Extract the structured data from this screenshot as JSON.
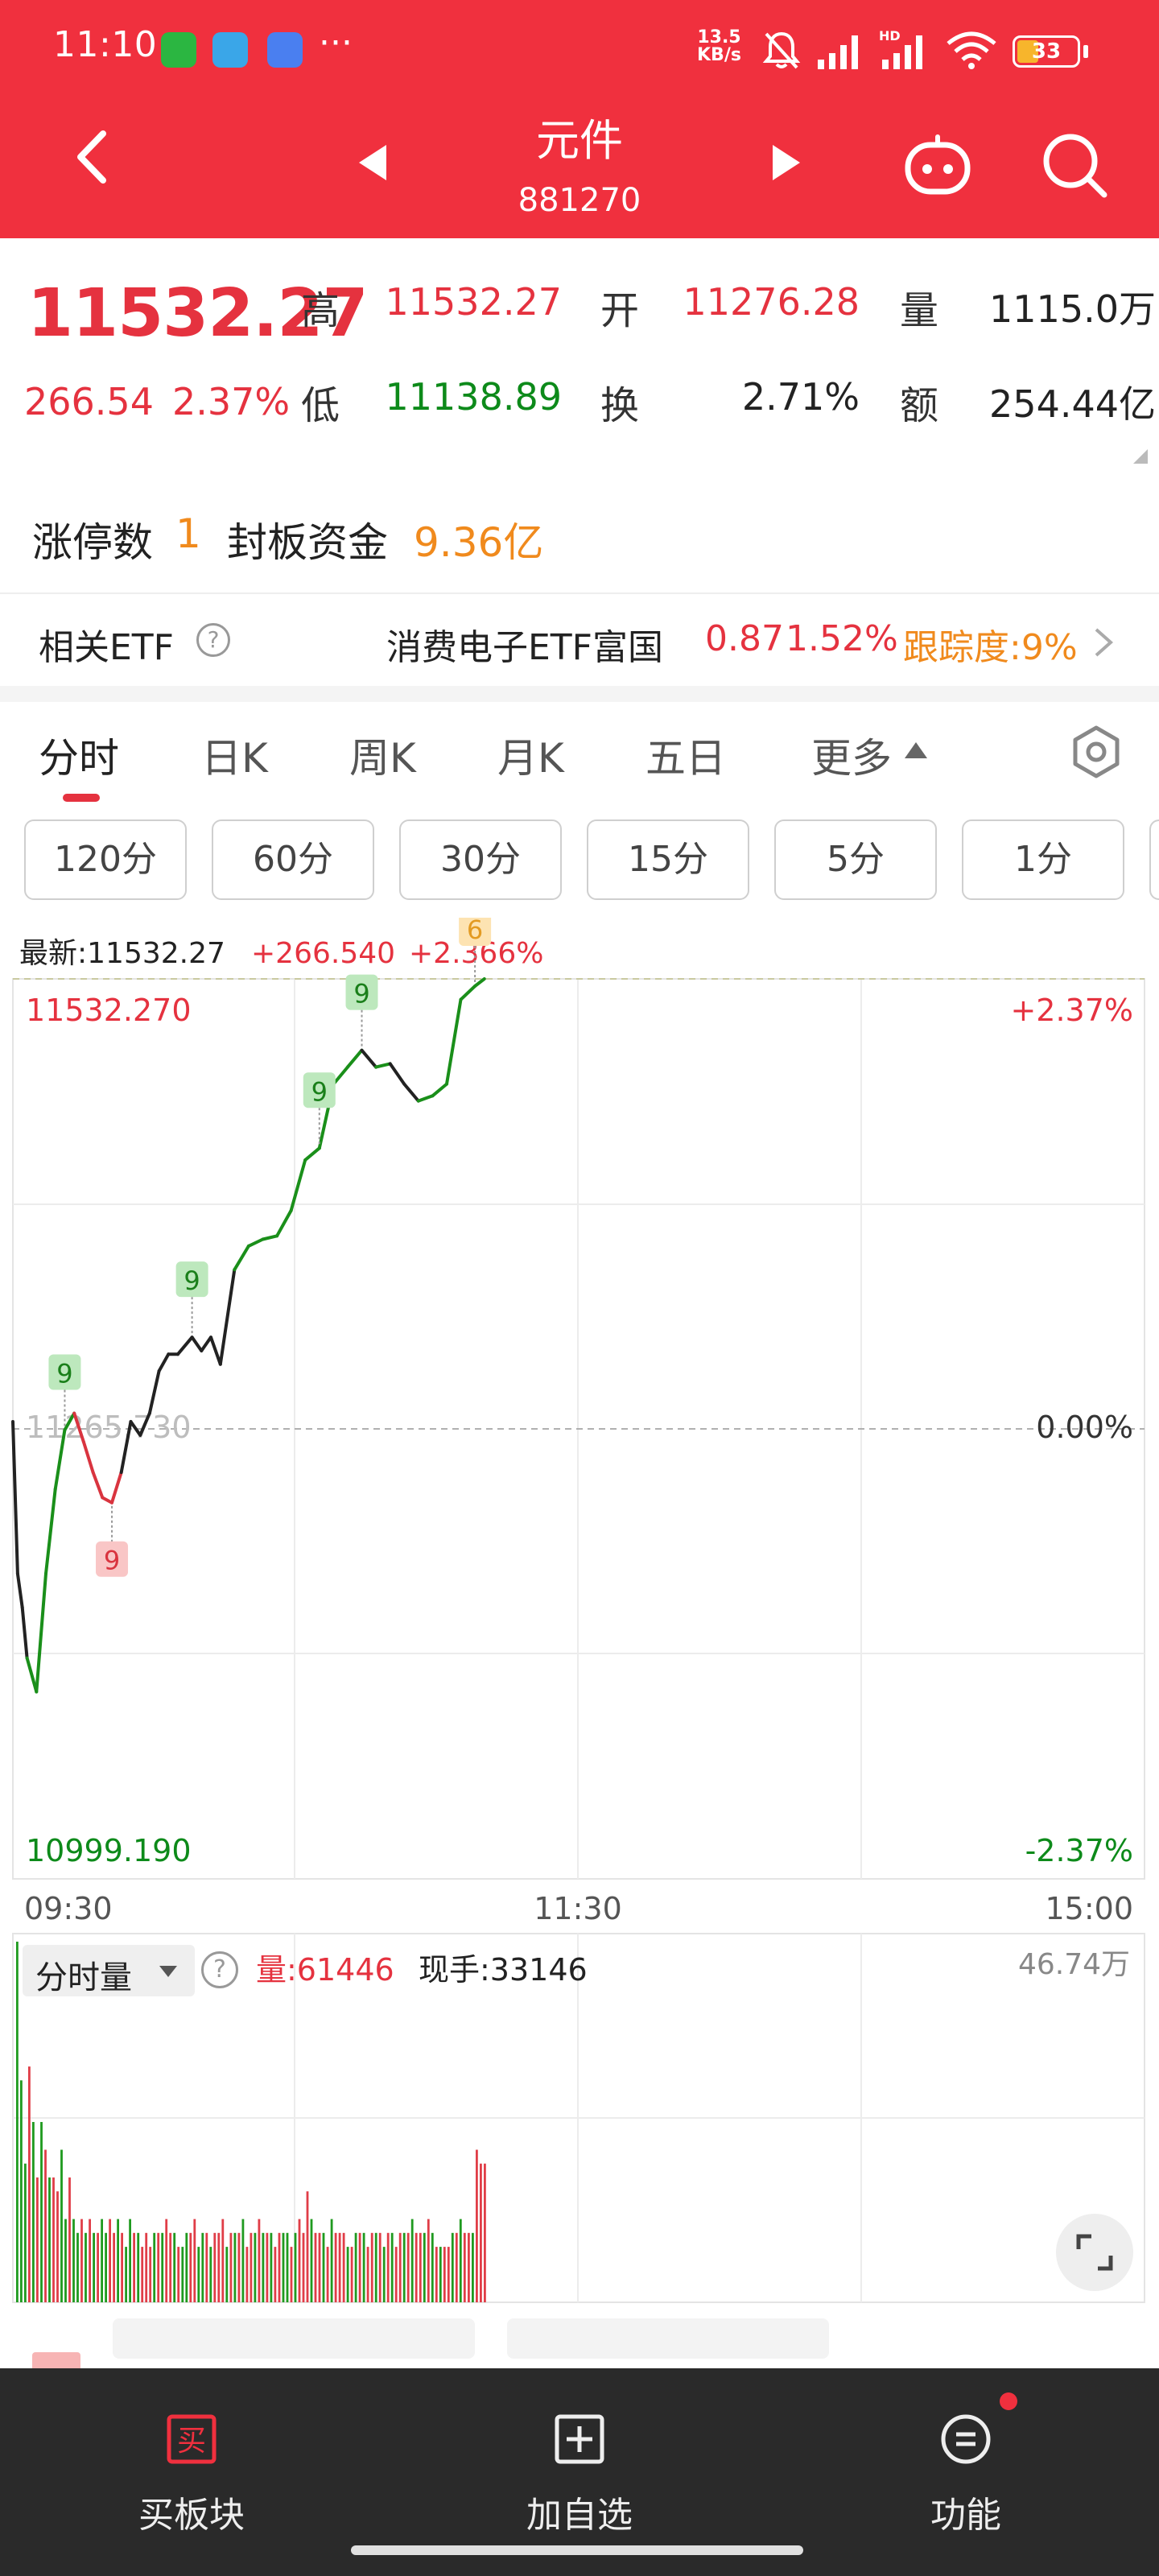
{
  "status_bar": {
    "time": "11:10",
    "more": "···",
    "net_speed_value": "13.5",
    "net_speed_unit": "KB/s",
    "battery": "33",
    "icons": [
      "wechat-icon",
      "telegram-icon",
      "app-icon",
      "mute-icon",
      "signal-icon",
      "signal-hd-icon",
      "wifi-icon",
      "battery-icon"
    ]
  },
  "header": {
    "title": "元件",
    "code": "881270"
  },
  "quote": {
    "price": "11532.27",
    "change": "266.54",
    "change_pct": "2.37%",
    "high_label": "高",
    "high": "11532.27",
    "open_label": "开",
    "open": "11276.28",
    "volume_label": "量",
    "volume": "1115.0万",
    "low_label": "低",
    "low": "11138.89",
    "turnover_label": "换",
    "turnover": "2.71%",
    "amount_label": "额",
    "amount": "254.44亿"
  },
  "limit": {
    "count_label": "涨停数",
    "count": "1",
    "fund_label": "封板资金",
    "fund": "9.36亿"
  },
  "etf": {
    "label": "相关ETF",
    "help": "?",
    "name": "消费电子ETF富国",
    "price": "0.87",
    "change_pct": "1.52%",
    "tracking": "跟踪度:9%"
  },
  "tabs": {
    "items": [
      "分时",
      "日K",
      "周K",
      "月K",
      "五日",
      "更多"
    ],
    "active": "分时"
  },
  "periods": [
    "120分",
    "60分",
    "30分",
    "15分",
    "5分",
    "1分"
  ],
  "chart_data": {
    "type": "line",
    "latest_label": "最新:11532.27",
    "latest_change": "+266.540",
    "latest_pct": "+2.366%",
    "y_top_label": "11532.270",
    "y_mid_label": "11265.730",
    "y_bottom_label": "10999.190",
    "pct_top": "+2.37%",
    "pct_mid": "0.00%",
    "pct_bottom": "-2.37%",
    "x_labels": [
      "09:30",
      "11:30",
      "15:00"
    ],
    "ylim": [
      10999.19,
      11532.27
    ],
    "prev_close": 11265.73,
    "x": [
      "09:30",
      "09:31",
      "09:32",
      "09:33",
      "09:35",
      "09:37",
      "09:39",
      "09:41",
      "09:43",
      "09:45",
      "09:47",
      "09:49",
      "09:51",
      "09:53",
      "09:55",
      "09:57",
      "09:59",
      "10:01",
      "10:03",
      "10:05",
      "10:08",
      "10:10",
      "10:12",
      "10:14",
      "10:17",
      "10:20",
      "10:23",
      "10:26",
      "10:29",
      "10:32",
      "10:35",
      "10:38",
      "10:41",
      "10:44",
      "10:47",
      "10:50",
      "10:53",
      "10:56",
      "10:59",
      "11:02",
      "11:05",
      "11:08",
      "11:10"
    ],
    "values": [
      11270,
      11180,
      11160,
      11130,
      11110,
      11180,
      11230,
      11265,
      11275,
      11258,
      11240,
      11225,
      11222,
      11240,
      11270,
      11262,
      11275,
      11300,
      11310,
      11310,
      11320,
      11312,
      11320,
      11304,
      11360,
      11374,
      11378,
      11380,
      11395,
      11425,
      11432,
      11470,
      11480,
      11490,
      11480,
      11482,
      11470,
      11460,
      11463,
      11470,
      11520,
      11528,
      11532.27
    ],
    "markers": [
      {
        "x": "09:41",
        "label": "9",
        "kind": "sell"
      },
      {
        "x": "09:51",
        "label": "9",
        "kind": "buy"
      },
      {
        "x": "10:08",
        "label": "9",
        "kind": "sell"
      },
      {
        "x": "10:35",
        "label": "9",
        "kind": "sell"
      },
      {
        "x": "10:44",
        "label": "9",
        "kind": "sell"
      },
      {
        "x": "11:08",
        "label": "6",
        "kind": "warn"
      }
    ],
    "volume": {
      "title": "分时量",
      "help": "?",
      "current_label": "量:61446",
      "hand_label": "现手:33146",
      "max_label": "46.74万",
      "bars": [
        26,
        16,
        10,
        17,
        13,
        9,
        13,
        11,
        9,
        9,
        8,
        11,
        6,
        9,
        6,
        5,
        6,
        5,
        6,
        5,
        5,
        6,
        5,
        6,
        5,
        6,
        5,
        4,
        6,
        5,
        5,
        4,
        5,
        4,
        5,
        5,
        5,
        6,
        5,
        5,
        4,
        4,
        5,
        5,
        6,
        4,
        5,
        5,
        4,
        5,
        5,
        6,
        4,
        5,
        5,
        5,
        6,
        4,
        5,
        5,
        6,
        5,
        5,
        5,
        4,
        5,
        5,
        5,
        4,
        5,
        6,
        5,
        8,
        6,
        5,
        5,
        5,
        4,
        6,
        5,
        5,
        5,
        4,
        4,
        5,
        5,
        5,
        4,
        5,
        5,
        5,
        4,
        5,
        5,
        4,
        5,
        5,
        5,
        6,
        5,
        5,
        5,
        6,
        5,
        4,
        4,
        4,
        4,
        5,
        5,
        6,
        5,
        5,
        5,
        11,
        10,
        10
      ],
      "bar_colors": [
        "g",
        "g",
        "g",
        "r",
        "g",
        "r",
        "g",
        "r",
        "g",
        "r",
        "r",
        "g",
        "g",
        "r",
        "g",
        "g",
        "r",
        "g",
        "r",
        "g",
        "r",
        "g",
        "g",
        "r",
        "r",
        "g",
        "r",
        "g",
        "g",
        "r",
        "g",
        "r",
        "r",
        "r",
        "g",
        "r",
        "g",
        "r",
        "r",
        "g",
        "r",
        "g",
        "g",
        "r",
        "r",
        "g",
        "g",
        "r",
        "g",
        "r",
        "r",
        "r",
        "g",
        "r",
        "g",
        "r",
        "g",
        "r",
        "r",
        "g",
        "r",
        "g",
        "r",
        "g",
        "r",
        "r",
        "g",
        "g",
        "r",
        "g",
        "r",
        "r",
        "r",
        "g",
        "r",
        "r",
        "g",
        "r",
        "g",
        "r",
        "r",
        "r",
        "g",
        "r",
        "g",
        "r",
        "g",
        "r",
        "r",
        "g",
        "r",
        "g",
        "r",
        "g",
        "r",
        "r",
        "g",
        "r",
        "g",
        "r",
        "r",
        "g",
        "r",
        "g",
        "r",
        "g",
        "r",
        "r",
        "g",
        "r",
        "g",
        "r",
        "r",
        "g",
        "r",
        "r",
        "r"
      ]
    }
  },
  "bottom_bar": {
    "buy_icon_text": "买",
    "buy": "买板块",
    "watch": "加自选",
    "func": "功能"
  }
}
